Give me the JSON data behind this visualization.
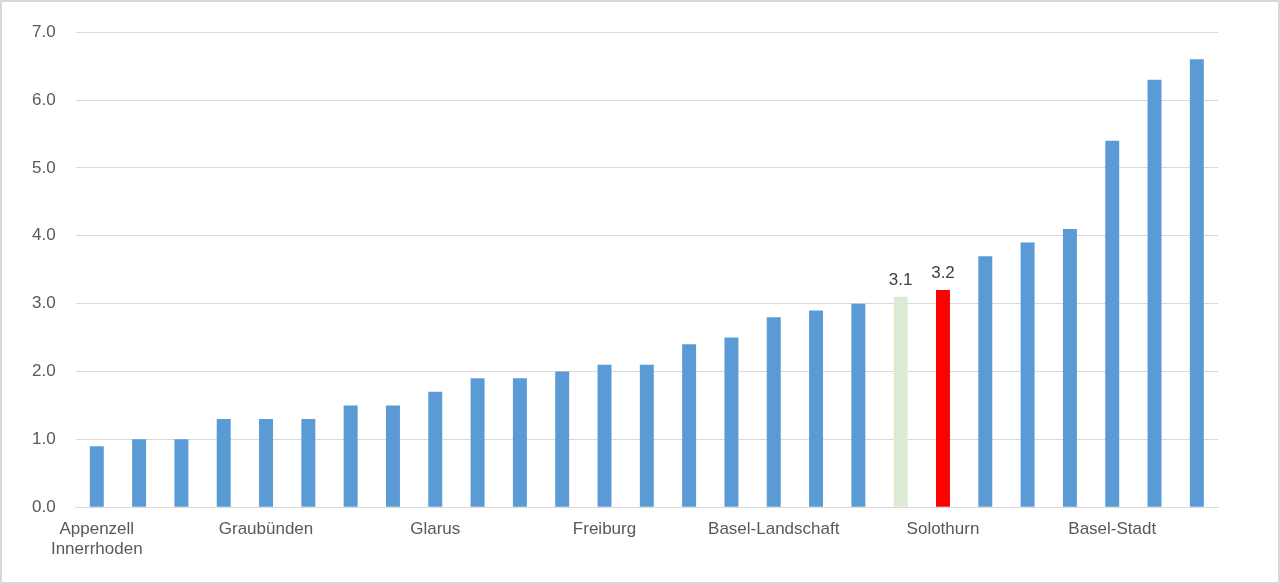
{
  "chart_data": {
    "type": "bar",
    "categories": [
      "Appenzell Innerrhoden",
      null,
      null,
      null,
      "Graubünden",
      null,
      null,
      null,
      "Glarus",
      null,
      null,
      null,
      "Freiburg",
      null,
      null,
      null,
      "Basel-Landschaft",
      null,
      null,
      null,
      "Solothurn",
      null,
      null,
      null,
      "Basel-Stadt",
      null,
      null
    ],
    "values": [
      0.9,
      1.0,
      1.0,
      1.3,
      1.3,
      1.3,
      1.5,
      1.5,
      1.7,
      1.9,
      1.9,
      2.0,
      2.1,
      2.1,
      2.4,
      2.5,
      2.8,
      2.9,
      3.0,
      3.1,
      3.2,
      3.7,
      3.9,
      4.1,
      5.4,
      6.3,
      6.6
    ],
    "colors": [
      "#5b9bd5",
      "#5b9bd5",
      "#5b9bd5",
      "#5b9bd5",
      "#5b9bd5",
      "#5b9bd5",
      "#5b9bd5",
      "#5b9bd5",
      "#5b9bd5",
      "#5b9bd5",
      "#5b9bd5",
      "#5b9bd5",
      "#5b9bd5",
      "#5b9bd5",
      "#5b9bd5",
      "#5b9bd5",
      "#5b9bd5",
      "#5b9bd5",
      "#5b9bd5",
      "#dce9d3",
      "#ff0000",
      "#5b9bd5",
      "#5b9bd5",
      "#5b9bd5",
      "#5b9bd5",
      "#5b9bd5",
      "#5b9bd5"
    ],
    "value_labels": [
      null,
      null,
      null,
      null,
      null,
      null,
      null,
      null,
      null,
      null,
      null,
      null,
      null,
      null,
      null,
      null,
      null,
      null,
      null,
      "3.1",
      "3.2",
      null,
      null,
      null,
      null,
      null,
      null
    ],
    "ylim": [
      0,
      7
    ],
    "yticks": [
      {
        "value": 0,
        "label": "0.0"
      },
      {
        "value": 1,
        "label": "1.0"
      },
      {
        "value": 2,
        "label": "2.0"
      },
      {
        "value": 3,
        "label": "3.0"
      },
      {
        "value": 4,
        "label": "4.0"
      },
      {
        "value": 5,
        "label": "5.0"
      },
      {
        "value": 6,
        "label": "6.0"
      },
      {
        "value": 7,
        "label": "7.0"
      }
    ],
    "grid": "y",
    "legend": false
  }
}
